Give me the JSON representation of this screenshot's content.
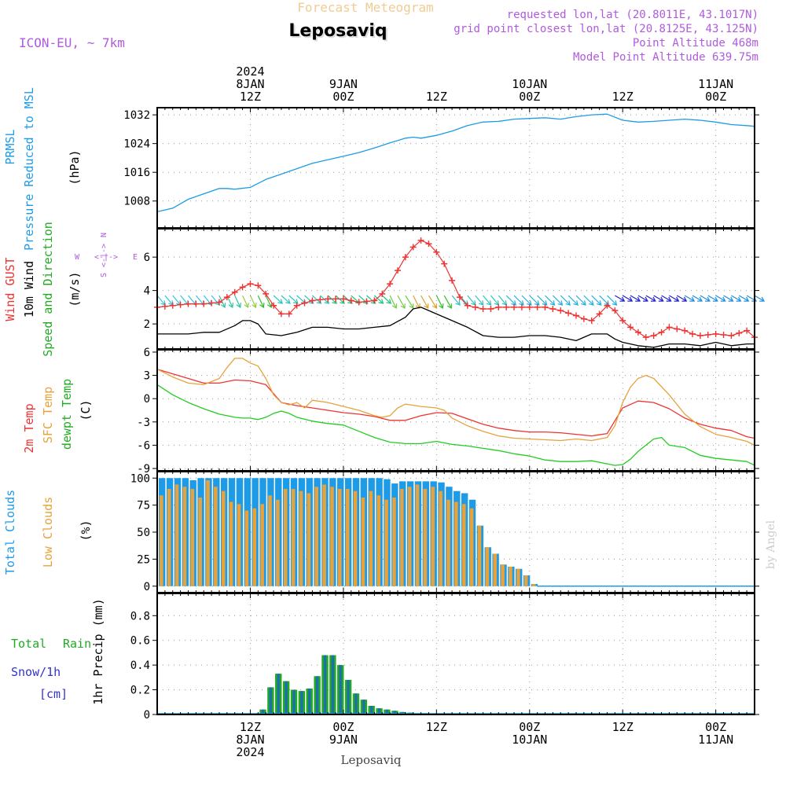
{
  "header": {
    "model": "ICON-EU, ~ 7km",
    "product": "Forecast Meteogram",
    "location": "Leposaviq",
    "requested": "requested lon,lat (20.8011E, 43.1017N)",
    "grid_point": "grid point closest lon,lat (20.8125E, 43.125N)",
    "point_altitude": "Point Altitude 468m",
    "model_altitude": "Model Point Altitude 639.75m",
    "credit": "by Angel",
    "footer_location": "Leposaviq"
  },
  "colors": {
    "pressure": "#1e9be6",
    "gust": "#ee3333",
    "wind": "#000000",
    "t2m": "#ee3333",
    "sfc": "#e6a23c",
    "dewpt": "#22cc22",
    "total_clouds": "#1e9be6",
    "low_clouds": "#e6a23c",
    "rain": "#22aa22",
    "snow": "#3333cc",
    "purple": "#b05adf",
    "credit": "#cccccc"
  },
  "time_axis": {
    "top_ticks": [
      {
        "t": 12,
        "lines": [
          "2024",
          "8JAN",
          "12Z"
        ]
      },
      {
        "t": 24,
        "lines": [
          "9JAN",
          "00Z"
        ]
      },
      {
        "t": 36,
        "lines": [
          "12Z"
        ]
      },
      {
        "t": 48,
        "lines": [
          "10JAN",
          "00Z"
        ]
      },
      {
        "t": 60,
        "lines": [
          "12Z"
        ]
      },
      {
        "t": 72,
        "lines": [
          "11JAN",
          "00Z"
        ]
      }
    ],
    "bottom_ticks": [
      {
        "t": 12,
        "lines": [
          "12Z",
          "8JAN",
          "2024"
        ]
      },
      {
        "t": 24,
        "lines": [
          "00Z",
          "9JAN"
        ]
      },
      {
        "t": 36,
        "lines": [
          "12Z"
        ]
      },
      {
        "t": 48,
        "lines": [
          "00Z",
          "10JAN"
        ]
      },
      {
        "t": 60,
        "lines": [
          "12Z"
        ]
      },
      {
        "t": 72,
        "lines": [
          "00Z",
          "11JAN"
        ]
      }
    ]
  },
  "panels": {
    "pressure": {
      "labels": [
        "PRMSL",
        "Pressure Reduced to MSL",
        "(hPa)"
      ],
      "ticks": [
        "1008",
        "1016",
        "1024",
        "1032"
      ]
    },
    "wind": {
      "labels": [
        "Wind GUST",
        "10m Wind",
        "Speed and Direction",
        "(m/s)"
      ],
      "ticks": [
        "2",
        "4",
        "6"
      ],
      "compass": [
        "N",
        "S",
        "W",
        "E",
        "<-|->"
      ]
    },
    "temp": {
      "labels": [
        "2m Temp",
        "SFC Temp",
        "dewpt Temp",
        "(C)"
      ],
      "ticks": [
        "-9",
        "-6",
        "-3",
        "0",
        "3",
        "6"
      ]
    },
    "clouds": {
      "labels": [
        "Total Clouds",
        "Low Clouds",
        "(%)"
      ],
      "ticks": [
        "0",
        "25",
        "50",
        "75",
        "100"
      ]
    },
    "precip": {
      "labels": [
        "Total",
        "Rain",
        "Snow/1h",
        "[cm]",
        "1hr Precip (mm)"
      ],
      "ticks": [
        "0",
        "0.2",
        "0.4",
        "0.6",
        "0.8"
      ]
    }
  },
  "chart_data": [
    {
      "type": "line",
      "title": "PRMSL Pressure Reduced to MSL",
      "ylabel": "(hPa)",
      "ylim": [
        1000.5,
        1034
      ],
      "series": [
        {
          "name": "PRMSL",
          "x": [
            0,
            2,
            4,
            6,
            8,
            9,
            10,
            12,
            14,
            16,
            18,
            20,
            22,
            24,
            26,
            28,
            30,
            32,
            33,
            34,
            36,
            38,
            40,
            42,
            44,
            46,
            48,
            50,
            52,
            54,
            56,
            58,
            60,
            62,
            64,
            66,
            68,
            70,
            72,
            74,
            76,
            77
          ],
          "values": [
            1005,
            1006,
            1008.5,
            1010,
            1011.5,
            1011.5,
            1011.3,
            1011.8,
            1014,
            1015.5,
            1017,
            1018.5,
            1019.5,
            1020.5,
            1021.5,
            1022.8,
            1024.2,
            1025.5,
            1025.8,
            1025.5,
            1026.3,
            1027.5,
            1029,
            1030,
            1030.2,
            1030.8,
            1031,
            1031.2,
            1030.8,
            1031.5,
            1032,
            1032.2,
            1030.5,
            1030,
            1030.2,
            1030.5,
            1030.8,
            1030.5,
            1030,
            1029.3,
            1029,
            1028.8
          ]
        }
      ]
    },
    {
      "type": "line",
      "title": "Wind GUST / 10m Wind Speed and Direction",
      "ylabel": "(m/s)",
      "ylim": [
        0.5,
        7.7
      ],
      "series": [
        {
          "name": "Wind GUST",
          "x": [
            0,
            2,
            4,
            6,
            8,
            9,
            10,
            11,
            12,
            13,
            14,
            15,
            16,
            17,
            18,
            20,
            22,
            24,
            26,
            28,
            29,
            30,
            31,
            32,
            33,
            34,
            35,
            36,
            37,
            38,
            39,
            40,
            41,
            42,
            43,
            44,
            46,
            48,
            50,
            52,
            54,
            55,
            56,
            57,
            58,
            59,
            60,
            61,
            62,
            63,
            64,
            65,
            66,
            67,
            68,
            69,
            70,
            72,
            74,
            76,
            77
          ],
          "values": [
            3,
            3.1,
            3.2,
            3.2,
            3.3,
            3.6,
            3.9,
            4.2,
            4.4,
            4.3,
            3.8,
            3.1,
            2.6,
            2.6,
            3.1,
            3.4,
            3.5,
            3.5,
            3.3,
            3.4,
            3.8,
            4.4,
            5.2,
            6,
            6.6,
            7,
            6.8,
            6.3,
            5.6,
            4.6,
            3.6,
            3.1,
            3,
            2.9,
            2.9,
            3,
            3,
            3,
            3,
            2.8,
            2.5,
            2.3,
            2.2,
            2.6,
            3.1,
            2.8,
            2.2,
            1.8,
            1.5,
            1.2,
            1.3,
            1.5,
            1.8,
            1.7,
            1.6,
            1.4,
            1.3,
            1.4,
            1.3,
            1.6,
            1.2
          ]
        },
        {
          "name": "10m Wind",
          "x": [
            0,
            2,
            4,
            6,
            8,
            10,
            11,
            12,
            13,
            14,
            16,
            18,
            20,
            22,
            24,
            26,
            28,
            30,
            32,
            33,
            34,
            35,
            36,
            38,
            40,
            42,
            44,
            46,
            48,
            50,
            52,
            54,
            56,
            58,
            59,
            60,
            62,
            64,
            66,
            68,
            70,
            72,
            74,
            76,
            77
          ],
          "values": [
            1.4,
            1.4,
            1.4,
            1.5,
            1.5,
            1.9,
            2.2,
            2.2,
            2,
            1.4,
            1.3,
            1.5,
            1.8,
            1.8,
            1.7,
            1.7,
            1.8,
            1.9,
            2.4,
            2.9,
            3,
            2.8,
            2.6,
            2.2,
            1.8,
            1.3,
            1.2,
            1.2,
            1.3,
            1.3,
            1.2,
            1,
            1.4,
            1.4,
            1.1,
            0.9,
            0.7,
            0.6,
            0.8,
            0.8,
            0.7,
            0.9,
            0.7,
            0.8,
            0.8
          ]
        }
      ]
    },
    {
      "type": "line",
      "title": "2m Temp / SFC Temp / dewpt Temp",
      "ylabel": "(C)",
      "ylim": [
        -9.3,
        6.3
      ],
      "series": [
        {
          "name": "2m Temp",
          "x": [
            0,
            2,
            4,
            6,
            8,
            10,
            12,
            14,
            16,
            18,
            20,
            22,
            24,
            26,
            28,
            30,
            32,
            34,
            36,
            38,
            40,
            42,
            44,
            46,
            48,
            50,
            52,
            54,
            56,
            58,
            60,
            62,
            64,
            66,
            68,
            70,
            72,
            74,
            76,
            77
          ],
          "values": [
            3.8,
            3.2,
            2.6,
            2,
            2,
            2.4,
            2.3,
            1.8,
            -0.5,
            -0.9,
            -1.2,
            -1.5,
            -1.8,
            -2,
            -2.3,
            -2.8,
            -2.8,
            -2.2,
            -1.8,
            -1.9,
            -2.6,
            -3.3,
            -3.8,
            -4.1,
            -4.3,
            -4.3,
            -4.4,
            -4.6,
            -4.8,
            -4.5,
            -1.2,
            -0.3,
            -0.5,
            -1.3,
            -2.5,
            -3.3,
            -3.8,
            -4.1,
            -4.9,
            -5.1
          ]
        },
        {
          "name": "SFC Temp",
          "x": [
            0,
            2,
            4,
            6,
            8,
            9,
            10,
            11,
            12,
            13,
            14,
            15,
            16,
            17,
            18,
            19,
            20,
            22,
            24,
            26,
            28,
            29,
            30,
            31,
            32,
            34,
            36,
            37,
            38,
            40,
            42,
            44,
            46,
            48,
            50,
            52,
            54,
            56,
            58,
            59,
            60,
            61,
            62,
            63,
            64,
            66,
            68,
            70,
            72,
            74,
            76,
            77
          ],
          "values": [
            3.8,
            2.8,
            2,
            1.8,
            2.6,
            4,
            5.2,
            5.2,
            4.6,
            4.2,
            2.6,
            0.5,
            -0.5,
            -0.8,
            -0.5,
            -1.2,
            -0.2,
            -0.5,
            -1,
            -1.5,
            -2.2,
            -2.4,
            -2.2,
            -1.2,
            -0.7,
            -1,
            -1.2,
            -1.5,
            -2.5,
            -3.5,
            -4.2,
            -4.8,
            -5.1,
            -5.2,
            -5.3,
            -5.4,
            -5.2,
            -5.4,
            -5,
            -3.5,
            -0.5,
            1.5,
            2.6,
            3,
            2.6,
            0.5,
            -2,
            -3.6,
            -4.6,
            -5,
            -5.5,
            -6
          ]
        },
        {
          "name": "dewpt Temp",
          "x": [
            0,
            2,
            4,
            6,
            8,
            10,
            11,
            12,
            13,
            14,
            15,
            16,
            17,
            18,
            20,
            22,
            24,
            26,
            28,
            30,
            32,
            34,
            36,
            38,
            40,
            42,
            44,
            46,
            48,
            50,
            52,
            54,
            56,
            58,
            59,
            60,
            61,
            62,
            63,
            64,
            65,
            66,
            68,
            70,
            72,
            74,
            76,
            77
          ],
          "values": [
            1.8,
            0.5,
            -0.5,
            -1.3,
            -2,
            -2.4,
            -2.5,
            -2.5,
            -2.7,
            -2.4,
            -1.9,
            -1.6,
            -1.9,
            -2.4,
            -2.9,
            -3.2,
            -3.4,
            -4.2,
            -5,
            -5.6,
            -5.8,
            -5.8,
            -5.5,
            -5.9,
            -6.1,
            -6.4,
            -6.7,
            -7.1,
            -7.4,
            -7.9,
            -8.1,
            -8.1,
            -8,
            -8.4,
            -8.6,
            -8.5,
            -7.8,
            -6.8,
            -6,
            -5.2,
            -5,
            -6,
            -6.3,
            -7.3,
            -7.7,
            -7.9,
            -8.1,
            -8.6
          ]
        }
      ]
    },
    {
      "type": "bar",
      "title": "Total Clouds / Low Clouds",
      "ylabel": "(%)",
      "ylim": [
        -6,
        106
      ],
      "series": [
        {
          "name": "Total Clouds",
          "x": [
            0,
            1,
            2,
            3,
            4,
            5,
            6,
            7,
            8,
            9,
            10,
            11,
            12,
            13,
            14,
            15,
            16,
            17,
            18,
            19,
            20,
            21,
            22,
            23,
            24,
            25,
            26,
            27,
            28,
            29,
            30,
            31,
            32,
            33,
            34,
            35,
            36,
            37,
            38,
            39,
            40,
            41,
            42,
            43,
            44,
            45,
            46,
            47,
            48
          ],
          "values": [
            100,
            100,
            100,
            100,
            98,
            100,
            100,
            100,
            100,
            100,
            100,
            100,
            100,
            100,
            100,
            100,
            100,
            100,
            100,
            100,
            100,
            100,
            100,
            100,
            100,
            100,
            100,
            100,
            100,
            99,
            95,
            97,
            97,
            97,
            97,
            97,
            96,
            92,
            88,
            86,
            80,
            56,
            36,
            30,
            20,
            18,
            16,
            10,
            2
          ]
        },
        {
          "name": "Low Clouds",
          "x": [
            0,
            1,
            2,
            3,
            4,
            5,
            6,
            7,
            8,
            9,
            10,
            11,
            12,
            13,
            14,
            15,
            16,
            17,
            18,
            19,
            20,
            21,
            22,
            23,
            24,
            25,
            26,
            27,
            28,
            29,
            30,
            31,
            32,
            33,
            34,
            35,
            36,
            37,
            38,
            39,
            40,
            41,
            42,
            43,
            44,
            45,
            46,
            47,
            48
          ],
          "values": [
            84,
            90,
            94,
            92,
            90,
            82,
            98,
            92,
            88,
            78,
            76,
            70,
            72,
            76,
            84,
            80,
            90,
            90,
            88,
            86,
            92,
            94,
            92,
            90,
            90,
            88,
            82,
            88,
            84,
            80,
            82,
            90,
            92,
            94,
            90,
            92,
            88,
            80,
            78,
            76,
            72,
            56,
            36,
            30,
            20,
            18,
            16,
            10,
            2
          ]
        }
      ]
    },
    {
      "type": "bar",
      "title": "1hr Precip",
      "ylabel": "1hr Precip (mm)",
      "ylim": [
        0,
        0.98
      ],
      "series": [
        {
          "name": "Total Rain",
          "x": [
            13,
            14,
            15,
            16,
            17,
            18,
            19,
            20,
            21,
            22,
            23,
            24,
            25,
            26,
            27,
            28,
            29,
            30,
            31,
            32,
            33,
            34,
            35,
            36
          ],
          "values": [
            0.04,
            0.22,
            0.33,
            0.27,
            0.2,
            0.19,
            0.21,
            0.31,
            0.48,
            0.48,
            0.4,
            0.28,
            0.17,
            0.12,
            0.07,
            0.05,
            0.04,
            0.03,
            0.02,
            0.015,
            0.01,
            0.01,
            0.008,
            0.005
          ]
        }
      ]
    }
  ]
}
